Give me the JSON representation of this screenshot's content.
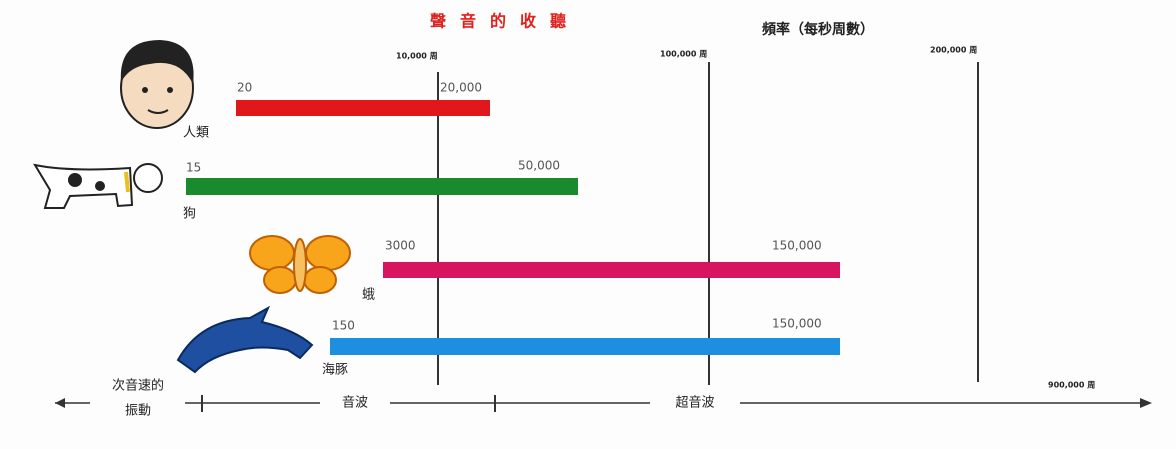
{
  "title": "聲音的收聽",
  "axis_label": "頻率（每秒周數）",
  "scale_labels": [
    "10,000 周",
    "100,000 周",
    "200,000 周",
    "900,000 周"
  ],
  "animals": [
    {
      "name": "人類",
      "low": "20",
      "high": "20,000"
    },
    {
      "name": "狗",
      "low": "15",
      "high": "50,000"
    },
    {
      "name": "蛾",
      "low": "3000",
      "high": "150,000"
    },
    {
      "name": "海豚",
      "low": "150",
      "high": "150,000"
    }
  ],
  "bottom": {
    "subsonic": [
      "次音速的",
      "振動"
    ],
    "sound": "音波",
    "ultrasound": "超音波"
  }
}
